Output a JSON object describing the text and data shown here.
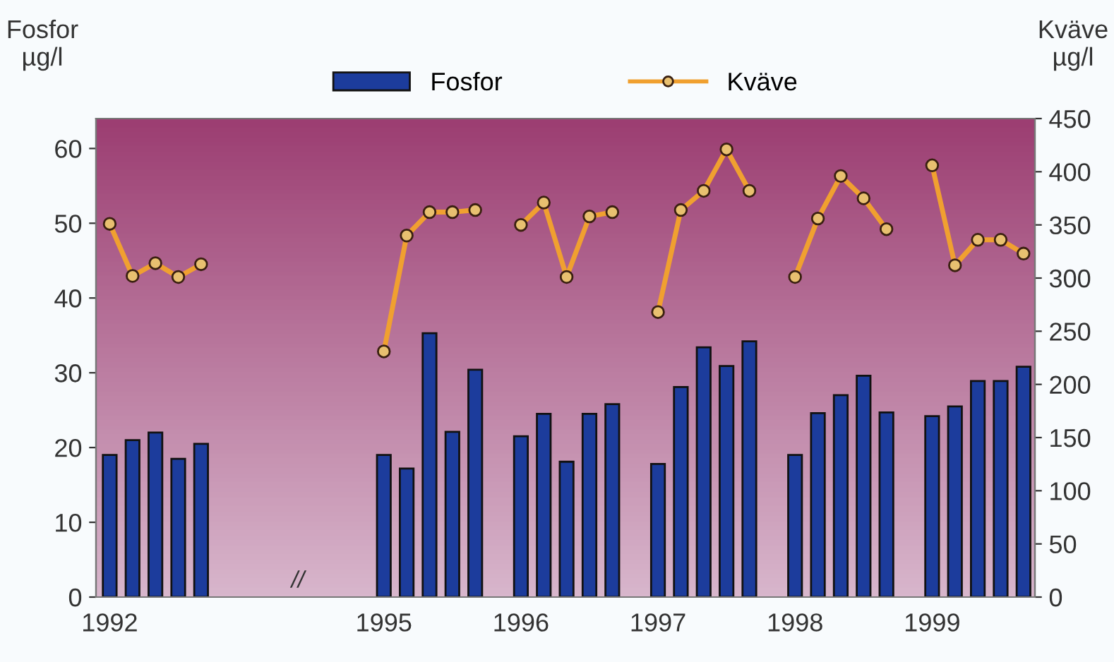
{
  "chart_data": {
    "type": "bar",
    "categories": [
      "1992",
      null,
      null,
      null,
      null,
      null,
      null,
      null,
      null,
      null,
      null,
      null,
      "1995",
      null,
      null,
      null,
      null,
      null,
      "1996",
      null,
      null,
      null,
      null,
      null,
      "1997",
      null,
      null,
      null,
      null,
      null,
      "1998",
      null,
      null,
      null,
      null,
      null,
      "1999",
      null,
      null,
      null,
      null
    ],
    "series": [
      {
        "name": "Fosfor",
        "color": "#1c3c9c",
        "values": [
          19,
          21,
          22,
          18.5,
          20.5,
          null,
          null,
          null,
          null,
          null,
          null,
          null,
          19,
          17.2,
          35.3,
          22.1,
          30.4,
          null,
          21.5,
          24.5,
          18.1,
          24.5,
          25.8,
          null,
          17.8,
          28.1,
          33.4,
          30.9,
          34.2,
          null,
          19,
          24.6,
          27,
          29.6,
          24.7,
          null,
          24.2,
          25.5,
          28.9,
          28.9,
          30.8
        ]
      },
      {
        "name": "Kväve",
        "type": "line",
        "axis": "y2",
        "color": "#f0a030",
        "marker": "circle",
        "values": [
          351,
          302,
          314,
          301,
          313,
          null,
          null,
          null,
          null,
          null,
          null,
          null,
          231,
          340,
          362,
          362,
          364,
          null,
          350,
          371,
          301,
          358,
          362,
          null,
          268,
          364,
          382,
          421,
          382,
          null,
          301,
          356,
          396,
          375,
          346,
          null,
          406,
          312,
          336,
          336,
          323
        ]
      }
    ],
    "ylabel": "Fosfor\nµg/l",
    "y2label": "Kväve\nµg/l",
    "ylim": [
      0,
      64
    ],
    "yticks": [
      0,
      10,
      20,
      30,
      40,
      50,
      60
    ],
    "y2lim": [
      0,
      450
    ],
    "y2ticks": [
      0,
      50,
      100,
      150,
      200,
      250,
      300,
      350,
      400,
      450
    ],
    "annotations": [
      "//"
    ],
    "legend": "top",
    "grid": false
  }
}
